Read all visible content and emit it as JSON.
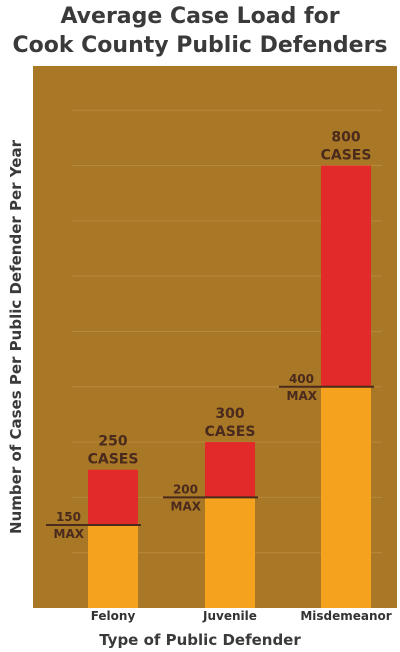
{
  "chart_data": {
    "type": "bar",
    "title_lines": [
      "Average Case Load for",
      "Cook County Public Defenders"
    ],
    "xlabel": "Type of Public Defender",
    "ylabel": "Number of Cases Per Public Defender Per Year",
    "categories": [
      "Felony",
      "Juvenile",
      "Misdemeanor"
    ],
    "values": [
      250,
      300,
      800
    ],
    "max_values": [
      150,
      200,
      400
    ],
    "value_label_unit": "CASES",
    "max_label_text": "MAX",
    "ylim": [
      0,
      980
    ],
    "grid": true,
    "colors": {
      "background": "#a87826",
      "within_max": "#f5a31e",
      "over_max": "#e22a2a",
      "max_line": "#4a2a1c",
      "grid": "#b9893a"
    }
  }
}
